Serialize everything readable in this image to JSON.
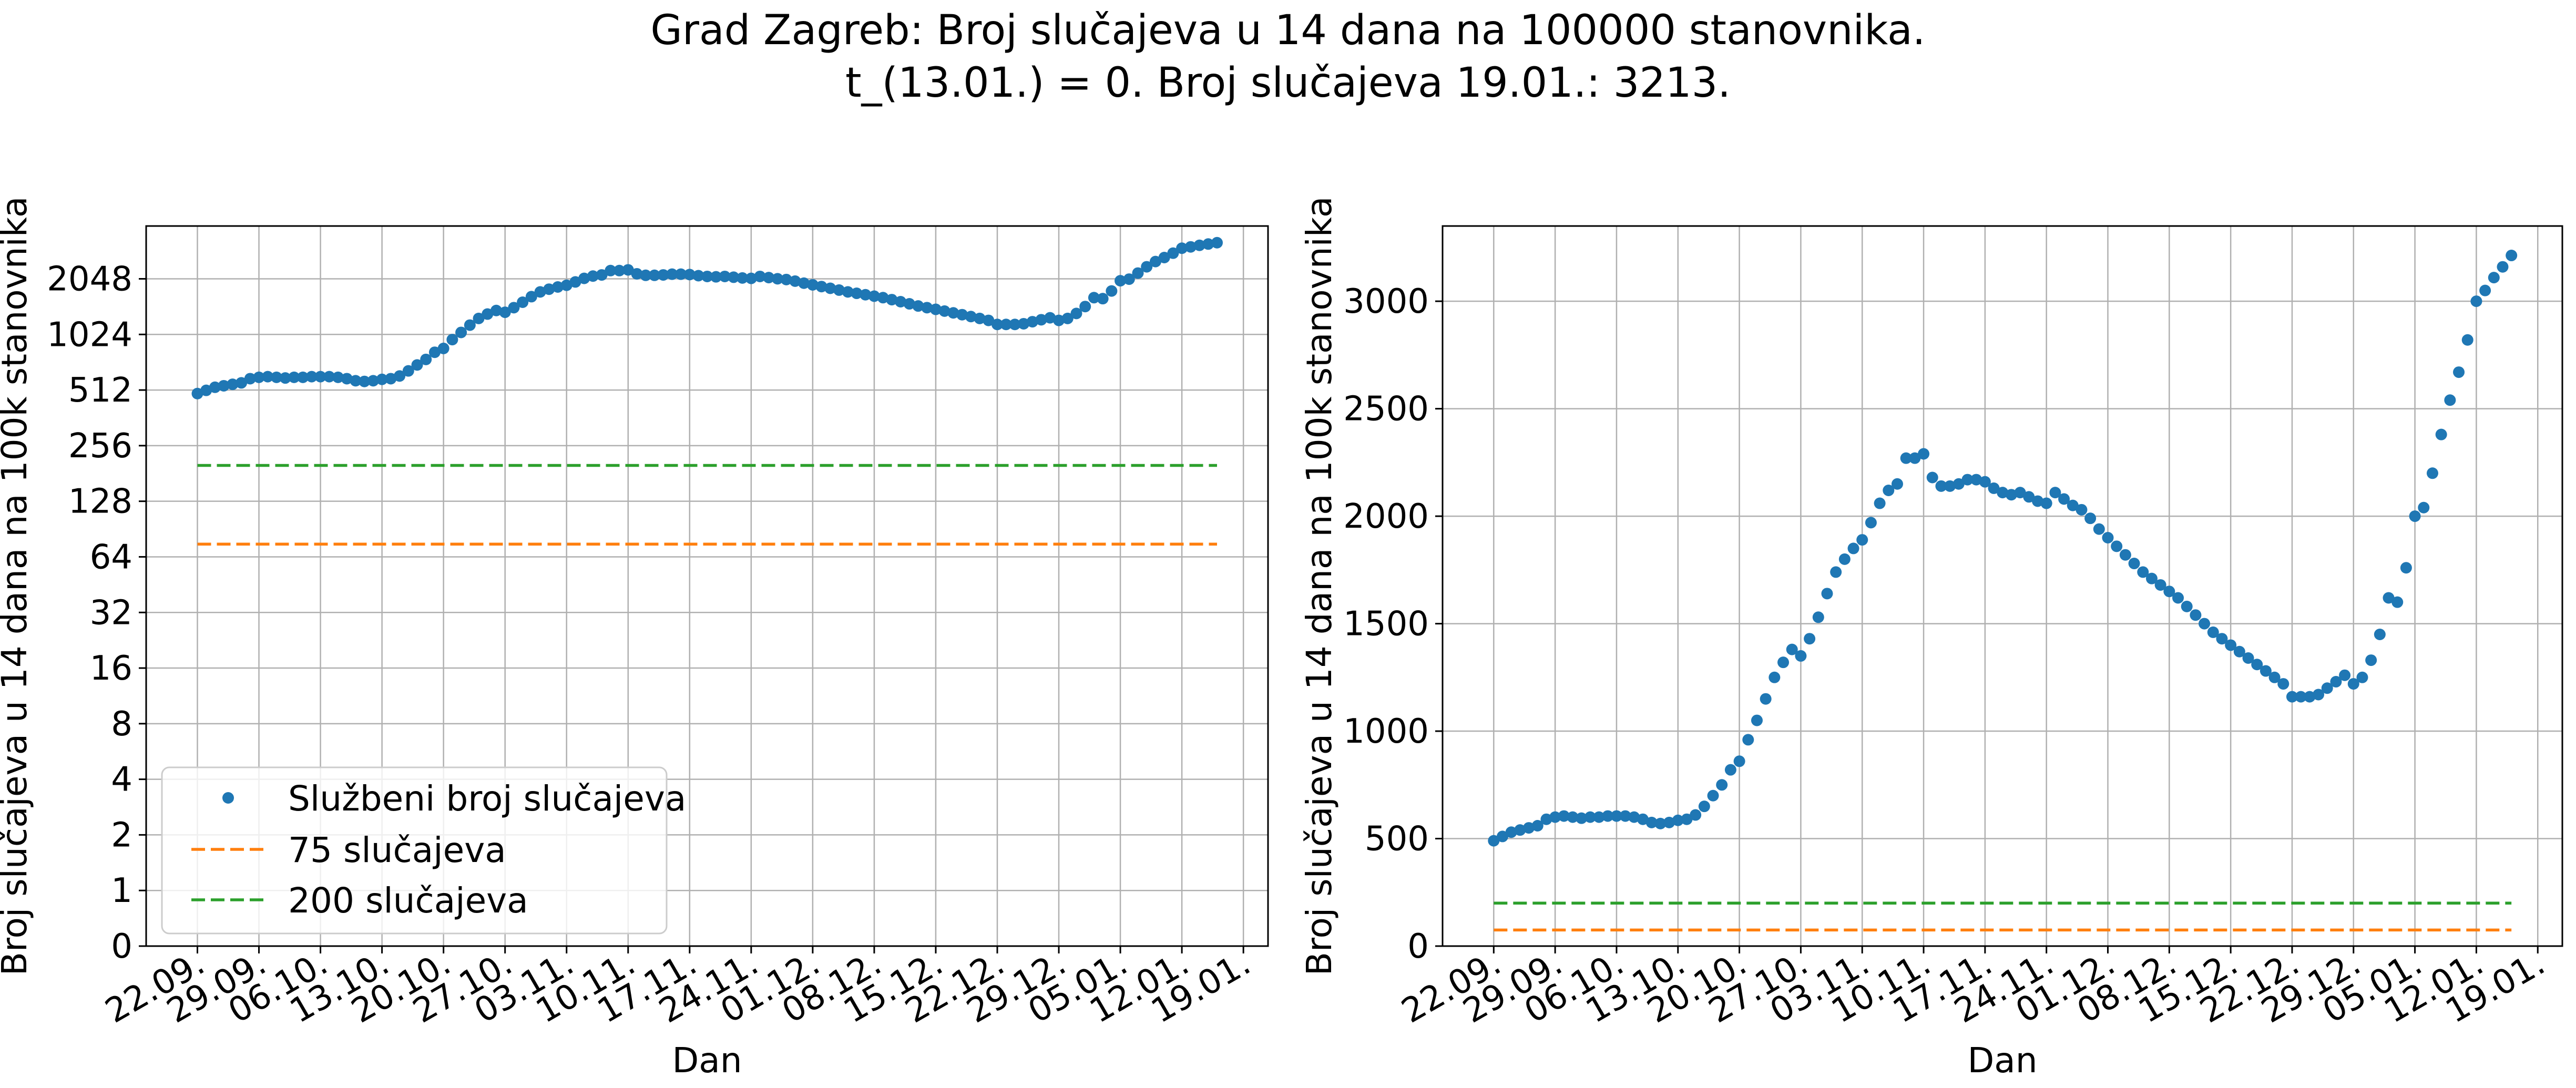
{
  "suptitle": {
    "line1": "Grad Zagreb: Broj slučajeva u 14 dana na 100000 stanovnika.",
    "line2": "t_(13.01.) = 0. Broj slučajeva 19.01.: 3213."
  },
  "colors": {
    "points": "#1f77b4",
    "line75": "#ff7f0e",
    "line200": "#2ca02c",
    "grid": "#b0b0b0"
  },
  "chart_data": [
    {
      "type": "scatter",
      "yscale": "log2",
      "xlabel": "Dan",
      "ylabel": "Broj slučajeva u 14 dana na 100k stanovnika",
      "x_ticks": [
        "22.09.",
        "29.09.",
        "06.10.",
        "13.10.",
        "20.10.",
        "27.10.",
        "03.11.",
        "10.11.",
        "17.11.",
        "24.11.",
        "01.12.",
        "08.12.",
        "15.12.",
        "22.12.",
        "29.12.",
        "05.01.",
        "12.01.",
        "19.01."
      ],
      "y_ticks": [
        "0",
        "1",
        "2",
        "4",
        "8",
        "16",
        "32",
        "64",
        "128",
        "256",
        "512",
        "1024",
        "2048"
      ],
      "grid": true,
      "legend_position": "lower-left",
      "legend": [
        "Službeni broj slučajeva",
        "75 slučajeva",
        "200 slučajeva"
      ],
      "series": [
        {
          "name": "Službeni broj slučajeva",
          "style": "points",
          "values": [
            490,
            510,
            530,
            540,
            550,
            560,
            590,
            600,
            605,
            600,
            595,
            600,
            600,
            605,
            605,
            605,
            600,
            590,
            575,
            570,
            575,
            585,
            590,
            610,
            650,
            700,
            750,
            820,
            860,
            960,
            1050,
            1150,
            1250,
            1320,
            1380,
            1350,
            1430,
            1530,
            1640,
            1740,
            1800,
            1850,
            1890,
            1970,
            2060,
            2120,
            2150,
            2270,
            2270,
            2290,
            2180,
            2140,
            2140,
            2150,
            2170,
            2170,
            2160,
            2130,
            2110,
            2100,
            2110,
            2090,
            2070,
            2060,
            2110,
            2080,
            2050,
            2030,
            1990,
            1940,
            1900,
            1860,
            1820,
            1780,
            1740,
            1710,
            1680,
            1650,
            1620,
            1580,
            1540,
            1500,
            1460,
            1430,
            1400,
            1370,
            1340,
            1310,
            1280,
            1250,
            1220,
            1160,
            1160,
            1160,
            1170,
            1200,
            1230,
            1260,
            1220,
            1250,
            1330,
            1450,
            1620,
            1600,
            1760,
            2000,
            2040,
            2200,
            2380,
            2540,
            2670,
            2820,
            3000,
            3050,
            3110,
            3160,
            3213
          ]
        },
        {
          "name": "75 slučajeva",
          "style": "dashed",
          "values": [
            75,
            75
          ]
        },
        {
          "name": "200 slučajeva",
          "style": "dashed",
          "values": [
            200,
            200
          ]
        }
      ]
    },
    {
      "type": "scatter",
      "yscale": "linear",
      "xlabel": "Dan",
      "ylabel": "Broj slučajeva u 14 dana na 100k stanovnika",
      "ylim": [
        0,
        3350
      ],
      "x_ticks": [
        "22.09.",
        "29.09.",
        "06.10.",
        "13.10.",
        "20.10.",
        "27.10.",
        "03.11.",
        "10.11.",
        "17.11.",
        "24.11.",
        "01.12.",
        "08.12.",
        "15.12.",
        "22.12.",
        "29.12.",
        "05.01.",
        "12.01.",
        "19.01."
      ],
      "y_ticks": [
        "0",
        "500",
        "1000",
        "1500",
        "2000",
        "2500",
        "3000"
      ],
      "grid": true,
      "series": [
        {
          "name": "Službeni broj slučajeva",
          "style": "points",
          "values": [
            490,
            510,
            530,
            540,
            550,
            560,
            590,
            600,
            605,
            600,
            595,
            600,
            600,
            605,
            605,
            605,
            600,
            590,
            575,
            570,
            575,
            585,
            590,
            610,
            650,
            700,
            750,
            820,
            860,
            960,
            1050,
            1150,
            1250,
            1320,
            1380,
            1350,
            1430,
            1530,
            1640,
            1740,
            1800,
            1850,
            1890,
            1970,
            2060,
            2120,
            2150,
            2270,
            2270,
            2290,
            2180,
            2140,
            2140,
            2150,
            2170,
            2170,
            2160,
            2130,
            2110,
            2100,
            2110,
            2090,
            2070,
            2060,
            2110,
            2080,
            2050,
            2030,
            1990,
            1940,
            1900,
            1860,
            1820,
            1780,
            1740,
            1710,
            1680,
            1650,
            1620,
            1580,
            1540,
            1500,
            1460,
            1430,
            1400,
            1370,
            1340,
            1310,
            1280,
            1250,
            1220,
            1160,
            1160,
            1160,
            1170,
            1200,
            1230,
            1260,
            1220,
            1250,
            1330,
            1450,
            1620,
            1600,
            1760,
            2000,
            2040,
            2200,
            2380,
            2540,
            2670,
            2820,
            3000,
            3050,
            3110,
            3160,
            3213
          ]
        },
        {
          "name": "75 slučajeva",
          "style": "dashed",
          "values": [
            75,
            75
          ]
        },
        {
          "name": "200 slučajeva",
          "style": "dashed",
          "values": [
            200,
            200
          ]
        }
      ]
    }
  ]
}
